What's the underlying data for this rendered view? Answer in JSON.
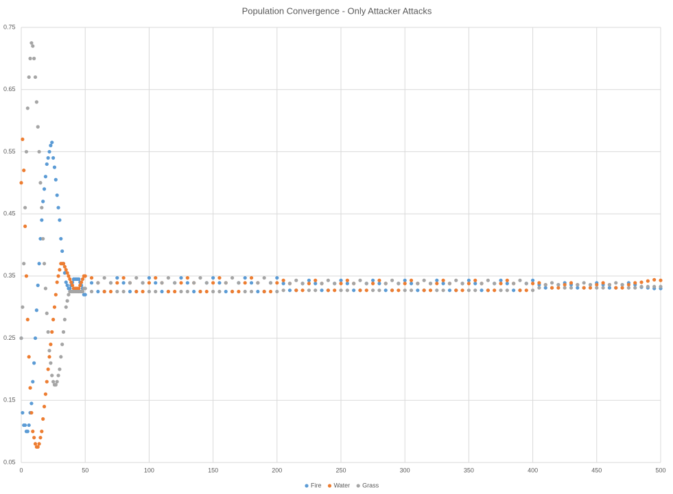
{
  "chart_data": {
    "type": "scatter",
    "title": "Population Convergence - Only Attacker Attacks",
    "x": [
      0,
      1,
      2,
      3,
      4,
      5,
      6,
      7,
      8,
      9,
      10,
      11,
      12,
      13,
      14,
      15,
      16,
      17,
      18,
      19,
      20,
      21,
      22,
      23,
      24,
      25,
      26,
      27,
      28,
      29,
      30,
      31,
      32,
      33,
      34,
      35,
      36,
      37,
      38,
      39,
      40,
      41,
      42,
      43,
      44,
      45,
      46,
      47,
      48,
      49,
      50,
      55,
      60,
      65,
      70,
      75,
      80,
      85,
      90,
      95,
      100,
      105,
      110,
      115,
      120,
      125,
      130,
      135,
      140,
      145,
      150,
      155,
      160,
      165,
      170,
      175,
      180,
      185,
      190,
      195,
      200,
      205,
      210,
      215,
      220,
      225,
      230,
      235,
      240,
      245,
      250,
      255,
      260,
      265,
      270,
      275,
      280,
      285,
      290,
      295,
      300,
      305,
      310,
      315,
      320,
      325,
      330,
      335,
      340,
      345,
      350,
      355,
      360,
      365,
      370,
      375,
      380,
      385,
      390,
      395,
      400,
      405,
      410,
      415,
      420,
      425,
      430,
      435,
      440,
      445,
      450,
      455,
      460,
      465,
      470,
      475,
      480,
      485,
      490,
      495,
      500
    ],
    "series": [
      {
        "name": "Fire",
        "color": "#5b9bd5",
        "values": [
          0.25,
          0.13,
          0.11,
          0.11,
          0.1,
          0.1,
          0.11,
          0.13,
          0.145,
          0.18,
          0.21,
          0.25,
          0.295,
          0.335,
          0.37,
          0.41,
          0.44,
          0.47,
          0.49,
          0.51,
          0.53,
          0.54,
          0.55,
          0.56,
          0.565,
          0.54,
          0.525,
          0.505,
          0.48,
          0.46,
          0.44,
          0.41,
          0.39,
          0.37,
          0.355,
          0.34,
          0.335,
          0.33,
          0.33,
          0.335,
          0.34,
          0.345,
          0.345,
          0.345,
          0.345,
          0.345,
          0.34,
          0.335,
          0.33,
          0.32,
          0.32,
          0.339,
          0.325,
          0.325,
          0.339,
          0.347,
          0.339,
          0.325,
          0.325,
          0.339,
          0.347,
          0.339,
          0.325,
          0.325,
          0.339,
          0.347,
          0.339,
          0.325,
          0.325,
          0.339,
          0.347,
          0.339,
          0.325,
          0.325,
          0.339,
          0.347,
          0.339,
          0.325,
          0.325,
          0.339,
          0.347,
          0.338,
          0.327,
          0.327,
          0.338,
          0.343,
          0.338,
          0.327,
          0.327,
          0.338,
          0.343,
          0.338,
          0.327,
          0.327,
          0.338,
          0.343,
          0.338,
          0.327,
          0.327,
          0.338,
          0.343,
          0.338,
          0.327,
          0.327,
          0.338,
          0.343,
          0.338,
          0.327,
          0.327,
          0.338,
          0.343,
          0.338,
          0.327,
          0.327,
          0.338,
          0.343,
          0.338,
          0.327,
          0.327,
          0.338,
          0.343,
          0.336,
          0.331,
          0.331,
          0.336,
          0.339,
          0.336,
          0.331,
          0.331,
          0.336,
          0.339,
          0.336,
          0.331,
          0.331,
          0.336,
          0.339,
          0.336,
          0.332,
          0.331,
          0.33,
          0.33
        ]
      },
      {
        "name": "Water",
        "color": "#ed7d31",
        "values": [
          0.5,
          0.57,
          0.52,
          0.43,
          0.35,
          0.28,
          0.22,
          0.17,
          0.13,
          0.1,
          0.09,
          0.08,
          0.075,
          0.075,
          0.08,
          0.09,
          0.1,
          0.12,
          0.14,
          0.16,
          0.18,
          0.2,
          0.22,
          0.24,
          0.26,
          0.28,
          0.3,
          0.32,
          0.34,
          0.35,
          0.36,
          0.37,
          0.37,
          0.37,
          0.365,
          0.36,
          0.355,
          0.35,
          0.345,
          0.34,
          0.335,
          0.33,
          0.33,
          0.33,
          0.33,
          0.33,
          0.335,
          0.34,
          0.345,
          0.35,
          0.35,
          0.347,
          0.339,
          0.325,
          0.325,
          0.339,
          0.347,
          0.339,
          0.325,
          0.325,
          0.339,
          0.347,
          0.339,
          0.325,
          0.325,
          0.339,
          0.347,
          0.339,
          0.325,
          0.325,
          0.339,
          0.347,
          0.339,
          0.325,
          0.325,
          0.339,
          0.347,
          0.339,
          0.325,
          0.325,
          0.339,
          0.343,
          0.338,
          0.327,
          0.327,
          0.338,
          0.343,
          0.338,
          0.327,
          0.327,
          0.338,
          0.343,
          0.338,
          0.327,
          0.327,
          0.338,
          0.343,
          0.338,
          0.327,
          0.327,
          0.338,
          0.343,
          0.338,
          0.327,
          0.327,
          0.338,
          0.343,
          0.338,
          0.327,
          0.327,
          0.338,
          0.343,
          0.338,
          0.327,
          0.327,
          0.338,
          0.343,
          0.338,
          0.327,
          0.327,
          0.338,
          0.339,
          0.336,
          0.331,
          0.331,
          0.336,
          0.339,
          0.336,
          0.331,
          0.331,
          0.336,
          0.339,
          0.336,
          0.331,
          0.331,
          0.336,
          0.339,
          0.34,
          0.342,
          0.344,
          0.343
        ]
      },
      {
        "name": "Grass",
        "color": "#a5a5a5",
        "values": [
          0.25,
          0.3,
          0.37,
          0.46,
          0.55,
          0.62,
          0.67,
          0.7,
          0.725,
          0.72,
          0.7,
          0.67,
          0.63,
          0.59,
          0.55,
          0.5,
          0.46,
          0.41,
          0.37,
          0.33,
          0.29,
          0.26,
          0.23,
          0.21,
          0.19,
          0.18,
          0.175,
          0.175,
          0.18,
          0.19,
          0.2,
          0.22,
          0.24,
          0.26,
          0.28,
          0.3,
          0.31,
          0.32,
          0.325,
          0.325,
          0.325,
          0.325,
          0.325,
          0.325,
          0.325,
          0.325,
          0.325,
          0.325,
          0.325,
          0.33,
          0.33,
          0.325,
          0.339,
          0.347,
          0.339,
          0.325,
          0.325,
          0.339,
          0.347,
          0.339,
          0.325,
          0.325,
          0.339,
          0.347,
          0.339,
          0.325,
          0.325,
          0.339,
          0.347,
          0.339,
          0.325,
          0.325,
          0.339,
          0.347,
          0.339,
          0.325,
          0.325,
          0.339,
          0.347,
          0.339,
          0.325,
          0.327,
          0.338,
          0.343,
          0.338,
          0.327,
          0.327,
          0.338,
          0.343,
          0.338,
          0.327,
          0.327,
          0.338,
          0.343,
          0.338,
          0.327,
          0.327,
          0.338,
          0.343,
          0.338,
          0.327,
          0.327,
          0.338,
          0.343,
          0.338,
          0.327,
          0.327,
          0.338,
          0.343,
          0.338,
          0.327,
          0.327,
          0.338,
          0.343,
          0.338,
          0.327,
          0.327,
          0.338,
          0.343,
          0.338,
          0.327,
          0.331,
          0.336,
          0.339,
          0.336,
          0.331,
          0.331,
          0.336,
          0.339,
          0.336,
          0.331,
          0.331,
          0.336,
          0.339,
          0.336,
          0.331,
          0.331,
          0.333,
          0.333,
          0.333,
          0.333
        ]
      }
    ],
    "xlim": [
      0,
      500
    ],
    "xticks": [
      0,
      50,
      100,
      150,
      200,
      250,
      300,
      350,
      400,
      450,
      500
    ],
    "ylim": [
      0.05,
      0.75
    ],
    "yticks": [
      0.05,
      0.15,
      0.25,
      0.35,
      0.45,
      0.55,
      0.65,
      0.75
    ],
    "grid": true,
    "legend": "bottom"
  }
}
